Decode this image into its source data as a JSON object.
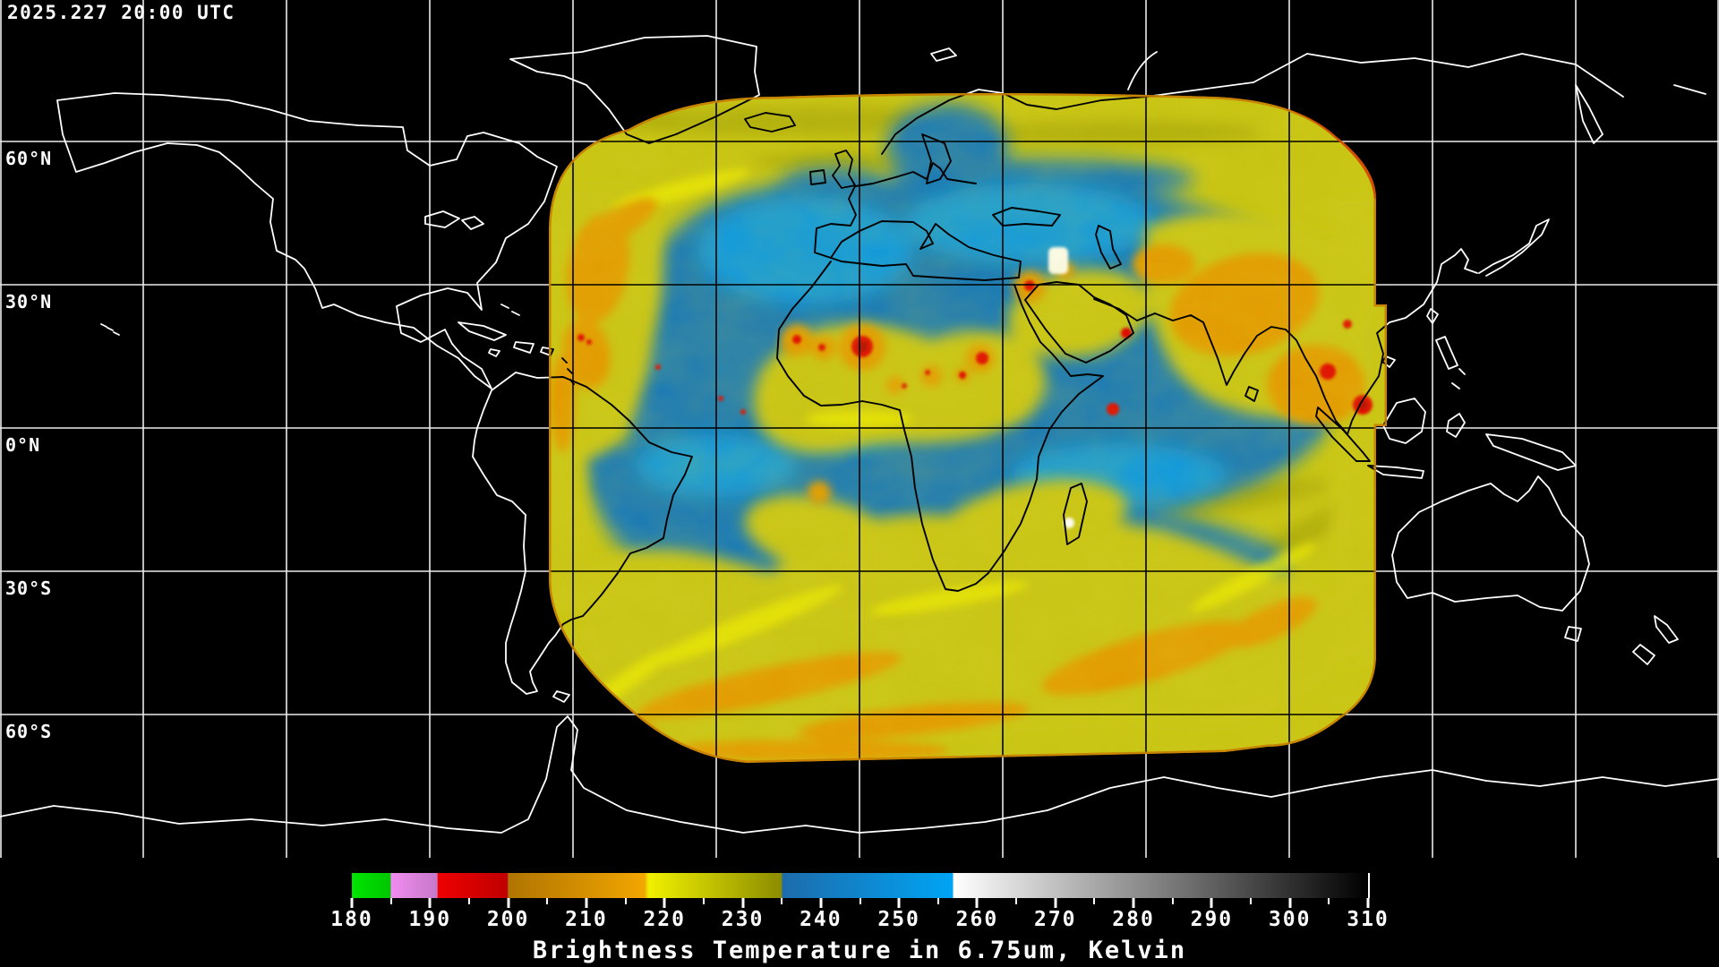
{
  "header": {
    "timestamp": "2025.227 20:00 UTC"
  },
  "map": {
    "latitude_labels": [
      {
        "text": "60°N",
        "lat": 60
      },
      {
        "text": "30°N",
        "lat": 30
      },
      {
        "text": "0°N",
        "lat": 0
      },
      {
        "text": "30°S",
        "lat": -30
      },
      {
        "text": "60°S",
        "lat": -60
      }
    ]
  },
  "colorbar": {
    "title": "Brightness Temperature in 6.75um, Kelvin",
    "unit": "Kelvin",
    "min": 180,
    "max": 310,
    "major_ticks": [
      180,
      190,
      200,
      210,
      220,
      230,
      240,
      250,
      260,
      270,
      280,
      290,
      300,
      310
    ],
    "minor_ticks": [
      185,
      195,
      205,
      215,
      225,
      235,
      245,
      255,
      265,
      275,
      285,
      295,
      305
    ],
    "palette_segments": [
      {
        "from": 180,
        "to": 185,
        "color": "#00dd00",
        "name": "green"
      },
      {
        "from": 185,
        "to": 191,
        "color": "#e08ae0",
        "name": "violet"
      },
      {
        "from": 191,
        "to": 200,
        "color": "#dd0000",
        "name": "red"
      },
      {
        "from": 200,
        "to": 218,
        "color": "#cc8400",
        "name": "orange"
      },
      {
        "from": 218,
        "to": 235,
        "color": "#d8d800",
        "name": "yellow-olive"
      },
      {
        "from": 235,
        "to": 258,
        "color": "#1080c8",
        "name": "blue"
      },
      {
        "from": 258,
        "to": 310,
        "color": "#ffffff to #000000",
        "name": "grayscale"
      }
    ]
  },
  "chart_data": {
    "type": "heatmap",
    "title": "Brightness Temperature in 6.75um, Kelvin",
    "timestamp": "2025.227 20:00 UTC",
    "unit": "Kelvin",
    "value_range": [
      180,
      310
    ],
    "colorbar_ticks": [
      180,
      190,
      200,
      210,
      220,
      230,
      240,
      250,
      260,
      270,
      280,
      290,
      300,
      310
    ],
    "latitude_gridlines_deg": [
      60,
      30,
      0,
      -30,
      -60
    ],
    "longitude_gridline_spacing_deg": 30,
    "projection": "equirectangular",
    "legend_position": "bottom"
  }
}
